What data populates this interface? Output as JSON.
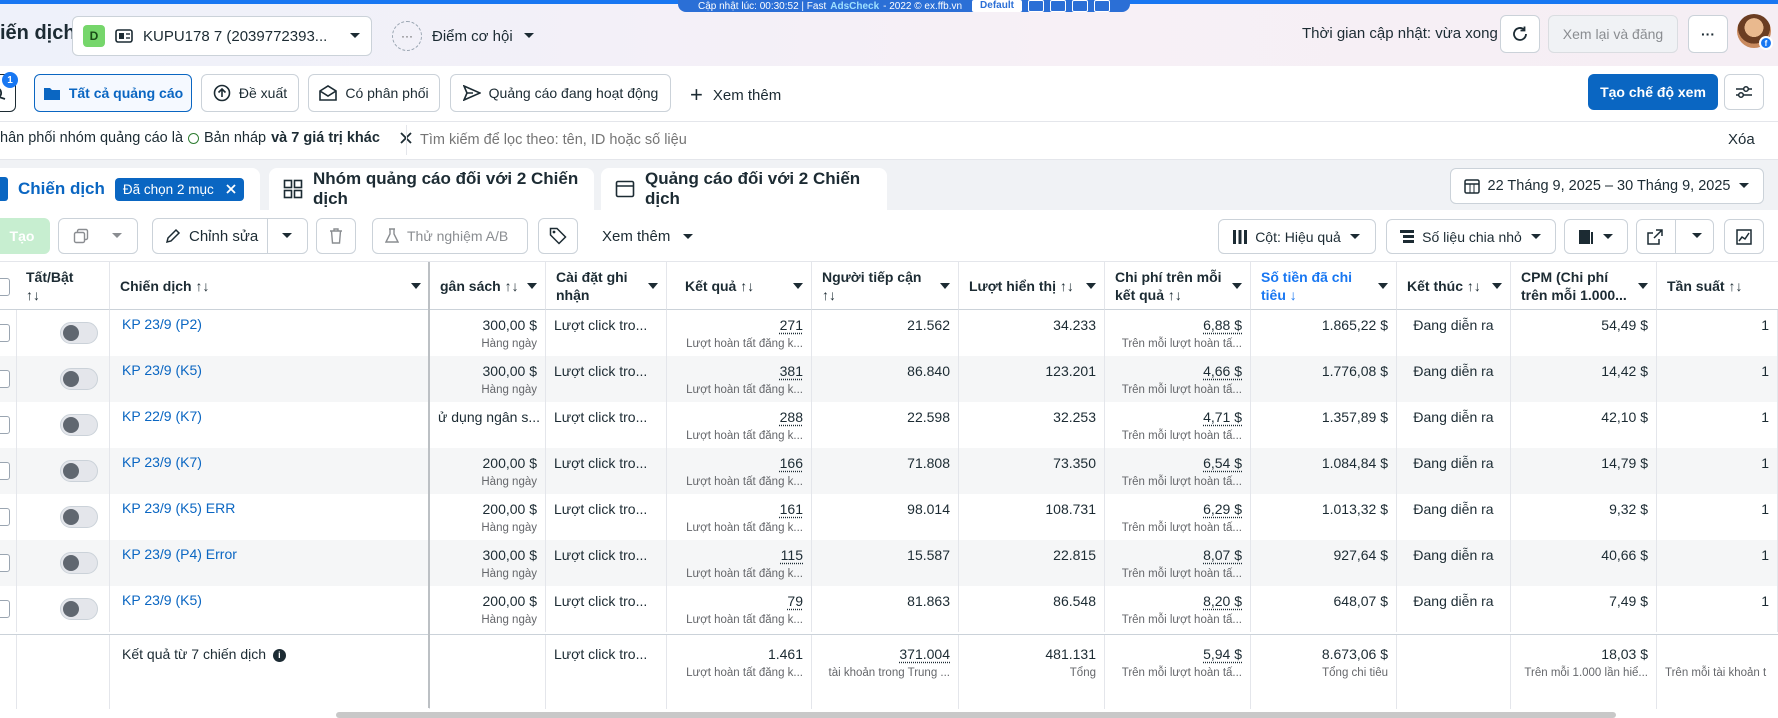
{
  "header": {
    "title": "iến dịch",
    "account_badge": "D",
    "account_name": "KUPU178 7 (2039772393...",
    "opportunity_label": "Điểm cơ hội",
    "opportunity_dots": "···",
    "update_time": "Thời gian cập nhật: vừa xong",
    "review_button": "Xem lại và đăng",
    "more_button": "···"
  },
  "extension_bar": {
    "text_prefix": "Cập nhật lúc: 00:30:52 | Fast ",
    "text_brand": "AdsCheck",
    "text_suffix": " - 2022 © ex.ffb.vn",
    "profile": "Default"
  },
  "filter_tabs": {
    "badge": "1",
    "items": [
      {
        "label": "Tất cả quảng cáo",
        "icon": "folder-icon",
        "active": true
      },
      {
        "label": "Đề xuất",
        "icon": "upload-circle-icon",
        "active": false
      },
      {
        "label": "Có phân phối",
        "icon": "envelope-icon",
        "active": false
      },
      {
        "label": "Quảng cáo đang hoạt động",
        "icon": "send-icon",
        "active": false
      }
    ],
    "more_label": "Xem thêm",
    "create_view": "Tạo chế độ xem"
  },
  "filter_row": {
    "prefix": "hân phối nhóm quảng cáo là",
    "value": "Bản nháp",
    "suffix": "và 7 giá trị khác",
    "search_placeholder": "Tìm kiếm để lọc theo: tên, ID hoặc số liệu",
    "clear": "Xóa"
  },
  "level_tabs": {
    "campaigns_label": "Chiến dịch",
    "selected_chip": "Đã chọn 2 mục",
    "adsets_label": "Nhóm quảng cáo đối với 2 Chiến dịch",
    "ads_label": "Quảng cáo đối với 2 Chiến dịch",
    "date_range": "22 Tháng 9, 2025 – 30 Tháng 9, 2025"
  },
  "toolbar": {
    "create": "Tạo",
    "edit": "Chỉnh sửa",
    "ab_test": "Thử nghiệm A/B",
    "more": "Xem thêm",
    "columns": "Cột: Hiệu quả",
    "breakdown": "Số liệu chia nhỏ"
  },
  "table": {
    "headers": {
      "toggle": "Tất/Bật",
      "toggle_sort": "↑↓",
      "campaign": "Chiến dịch ↑↓",
      "budget": "gân sách ↑↓",
      "attribution": "Cài đặt ghi nhận",
      "results": "Kết quả ↑↓",
      "reach": "Người tiếp cận",
      "reach_sort": "↑↓",
      "impressions": "Lượt hiển thị ↑↓",
      "cost_per_result": "Chi phí trên mỗi kết quả ↑↓",
      "amount_spent": "Số tiền đã chi tiêu ↓",
      "ends": "Kết thúc ↑↓",
      "cpm": "CPM (Chi phí trên mỗi 1.000...",
      "frequency": "Tần suất ↑↓"
    },
    "rows": [
      {
        "name": "KP 23/9 (P2)",
        "budget": "300,00 $",
        "budget_type": "Hàng ngày",
        "attribution": "Lượt click tro...",
        "results": "271",
        "results_sub": "Lượt hoàn tất đăng k...",
        "reach": "21.562",
        "impressions": "34.233",
        "cpr": "6,88 $",
        "cpr_sub": "Trên mỗi lượt hoàn tấ...",
        "spent": "1.865,22 $",
        "ends": "Đang diễn ra",
        "cpm": "54,49 $",
        "freq": "1"
      },
      {
        "name": "KP 23/9 (K5)",
        "budget": "300,00 $",
        "budget_type": "Hàng ngày",
        "attribution": "Lượt click tro...",
        "results": "381",
        "results_sub": "Lượt hoàn tất đăng k...",
        "reach": "86.840",
        "impressions": "123.201",
        "cpr": "4,66 $",
        "cpr_sub": "Trên mỗi lượt hoàn tấ...",
        "spent": "1.776,08 $",
        "ends": "Đang diễn ra",
        "cpm": "14,42 $",
        "freq": "1"
      },
      {
        "name": "KP 22/9 (K7)",
        "budget": "ử dụng ngân s...",
        "budget_type": "",
        "attribution": "Lượt click tro...",
        "results": "288",
        "results_sub": "Lượt hoàn tất đăng k...",
        "reach": "22.598",
        "impressions": "32.253",
        "cpr": "4,71 $",
        "cpr_sub": "Trên mỗi lượt hoàn tấ...",
        "spent": "1.357,89 $",
        "ends": "Đang diễn ra",
        "cpm": "42,10 $",
        "freq": "1"
      },
      {
        "name": "KP 23/9 (K7)",
        "budget": "200,00 $",
        "budget_type": "Hàng ngày",
        "attribution": "Lượt click tro...",
        "results": "166",
        "results_sub": "Lượt hoàn tất đăng k...",
        "reach": "71.808",
        "impressions": "73.350",
        "cpr": "6,54 $",
        "cpr_sub": "Trên mỗi lượt hoàn tấ...",
        "spent": "1.084,84 $",
        "ends": "Đang diễn ra",
        "cpm": "14,79 $",
        "freq": "1"
      },
      {
        "name": "KP 23/9 (K5) ERR",
        "budget": "200,00 $",
        "budget_type": "Hàng ngày",
        "attribution": "Lượt click tro...",
        "results": "161",
        "results_sub": "Lượt hoàn tất đăng k...",
        "reach": "98.014",
        "impressions": "108.731",
        "cpr": "6,29 $",
        "cpr_sub": "Trên mỗi lượt hoàn tấ...",
        "spent": "1.013,32 $",
        "ends": "Đang diễn ra",
        "cpm": "9,32 $",
        "freq": "1"
      },
      {
        "name": "KP 23/9 (P4) Error",
        "budget": "300,00 $",
        "budget_type": "Hàng ngày",
        "attribution": "Lượt click tro...",
        "results": "115",
        "results_sub": "Lượt hoàn tất đăng k...",
        "reach": "15.587",
        "impressions": "22.815",
        "cpr": "8,07 $",
        "cpr_sub": "Trên mỗi lượt hoàn tấ...",
        "spent": "927,64 $",
        "ends": "Đang diễn ra",
        "cpm": "40,66 $",
        "freq": "1"
      },
      {
        "name": "KP 23/9 (K5)",
        "budget": "200,00 $",
        "budget_type": "Hàng ngày",
        "attribution": "Lượt click tro...",
        "results": "79",
        "results_sub": "Lượt hoàn tất đăng k...",
        "reach": "81.863",
        "impressions": "86.548",
        "cpr": "8,20 $",
        "cpr_sub": "Trên mỗi lượt hoàn tấ...",
        "spent": "648,07 $",
        "ends": "Đang diễn ra",
        "cpm": "7,49 $",
        "freq": "1"
      }
    ],
    "footer": {
      "label": "Kết quả từ 7 chiến dịch",
      "attribution": "Lượt click tro...",
      "results": "1.461",
      "results_sub": "Lượt hoàn tất đăng k...",
      "reach": "371.004",
      "reach_sub": "tài khoản trong Trung ...",
      "impressions": "481.131",
      "impressions_sub": "Tổng",
      "cpr": "5,94 $",
      "cpr_sub": "Trên mỗi lượt hoàn tấ...",
      "spent": "8.673,06 $",
      "spent_sub": "Tổng chi tiêu",
      "cpm": "18,03 $",
      "cpm_sub": "Trên mỗi 1.000 lần hiể...",
      "freq_sub": "Trên mỗi tài khoản t"
    }
  },
  "colors": {
    "accent": "#0a66c2",
    "link": "#0a66c2",
    "sorted_header": "#1877f2"
  }
}
